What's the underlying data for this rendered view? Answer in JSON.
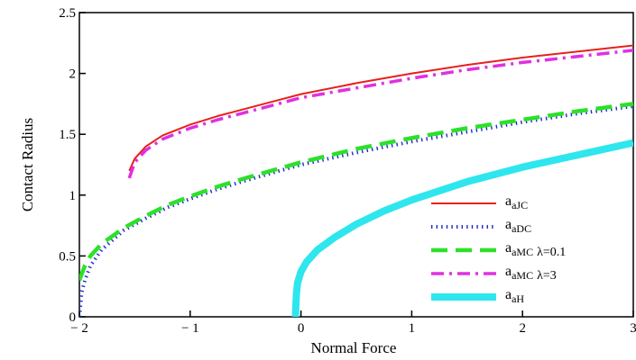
{
  "chart_data": {
    "type": "line",
    "xlabel": "Normal Force",
    "ylabel": "Contact Radius",
    "xlim": [
      -2,
      3
    ],
    "ylim": [
      0,
      2.5
    ],
    "xticks": [
      -2,
      -1,
      0,
      1,
      2,
      3
    ],
    "xtick_labels": [
      "− 2",
      "− 1",
      "0",
      "1",
      "2",
      "3"
    ],
    "yticks": [
      0,
      0.5,
      1,
      1.5,
      2,
      2.5
    ],
    "ytick_labels": [
      "0",
      "0.5",
      "1",
      "1.5",
      "2",
      "2.5"
    ],
    "grid": false,
    "legend_position": "bottom-right",
    "series": [
      {
        "name": "aaJC",
        "legend_main": "a",
        "legend_sub": "aJC",
        "color": "#e8201c",
        "style": "solid",
        "x": [
          -1.55,
          -1.5,
          -1.4,
          -1.25,
          -1.0,
          -0.75,
          -0.5,
          -0.25,
          0.0,
          0.5,
          1.0,
          1.5,
          2.0,
          2.5,
          3.0
        ],
        "y": [
          1.2,
          1.3,
          1.4,
          1.49,
          1.58,
          1.65,
          1.71,
          1.77,
          1.83,
          1.92,
          2.0,
          2.07,
          2.13,
          2.18,
          2.23
        ]
      },
      {
        "name": "aaDC",
        "legend_main": "a",
        "legend_sub": "aDC",
        "color": "#1a2ec8",
        "style": "dotted",
        "x": [
          -2.0,
          -1.98,
          -1.95,
          -1.9,
          -1.8,
          -1.6,
          -1.4,
          -1.2,
          -1.0,
          -0.75,
          -0.5,
          0.0,
          0.5,
          1.0,
          1.5,
          2.0,
          2.5,
          3.0
        ],
        "y": [
          0.0,
          0.2,
          0.3,
          0.42,
          0.55,
          0.71,
          0.81,
          0.9,
          0.97,
          1.05,
          1.12,
          1.25,
          1.35,
          1.44,
          1.52,
          1.6,
          1.67,
          1.73
        ]
      },
      {
        "name": "aaMC λ=0.1",
        "legend_main": "a",
        "legend_sub": "aMC",
        "legend_suffix": "λ=0.1",
        "color": "#2de02a",
        "style": "dashed",
        "x": [
          -2.0,
          -1.95,
          -1.9,
          -1.8,
          -1.6,
          -1.4,
          -1.2,
          -1.0,
          -0.75,
          -0.5,
          0.0,
          0.5,
          1.0,
          1.5,
          2.0,
          2.5,
          3.0
        ],
        "y": [
          0.3,
          0.42,
          0.5,
          0.6,
          0.73,
          0.83,
          0.92,
          0.99,
          1.07,
          1.14,
          1.27,
          1.38,
          1.47,
          1.55,
          1.62,
          1.69,
          1.75
        ]
      },
      {
        "name": "aaMC λ=3",
        "legend_main": "a",
        "legend_sub": "aMC",
        "legend_suffix": "λ=3",
        "color": "#e030e0",
        "style": "dashdot",
        "x": [
          -1.55,
          -1.5,
          -1.4,
          -1.25,
          -1.0,
          -0.75,
          -0.5,
          -0.25,
          0.0,
          0.5,
          1.0,
          1.5,
          2.0,
          2.5,
          3.0
        ],
        "y": [
          1.14,
          1.27,
          1.37,
          1.46,
          1.55,
          1.62,
          1.68,
          1.74,
          1.8,
          1.88,
          1.96,
          2.03,
          2.09,
          2.14,
          2.19
        ]
      },
      {
        "name": "aaH",
        "legend_main": "a",
        "legend_sub": "aH",
        "color": "#2ee6ee",
        "style": "thick",
        "x": [
          -0.05,
          -0.045,
          -0.04,
          -0.03,
          0.0,
          0.05,
          0.15,
          0.3,
          0.5,
          0.75,
          1.0,
          1.5,
          2.0,
          2.5,
          3.0
        ],
        "y": [
          0.0,
          0.12,
          0.2,
          0.28,
          0.37,
          0.45,
          0.55,
          0.65,
          0.76,
          0.87,
          0.96,
          1.11,
          1.23,
          1.33,
          1.43
        ]
      }
    ]
  }
}
